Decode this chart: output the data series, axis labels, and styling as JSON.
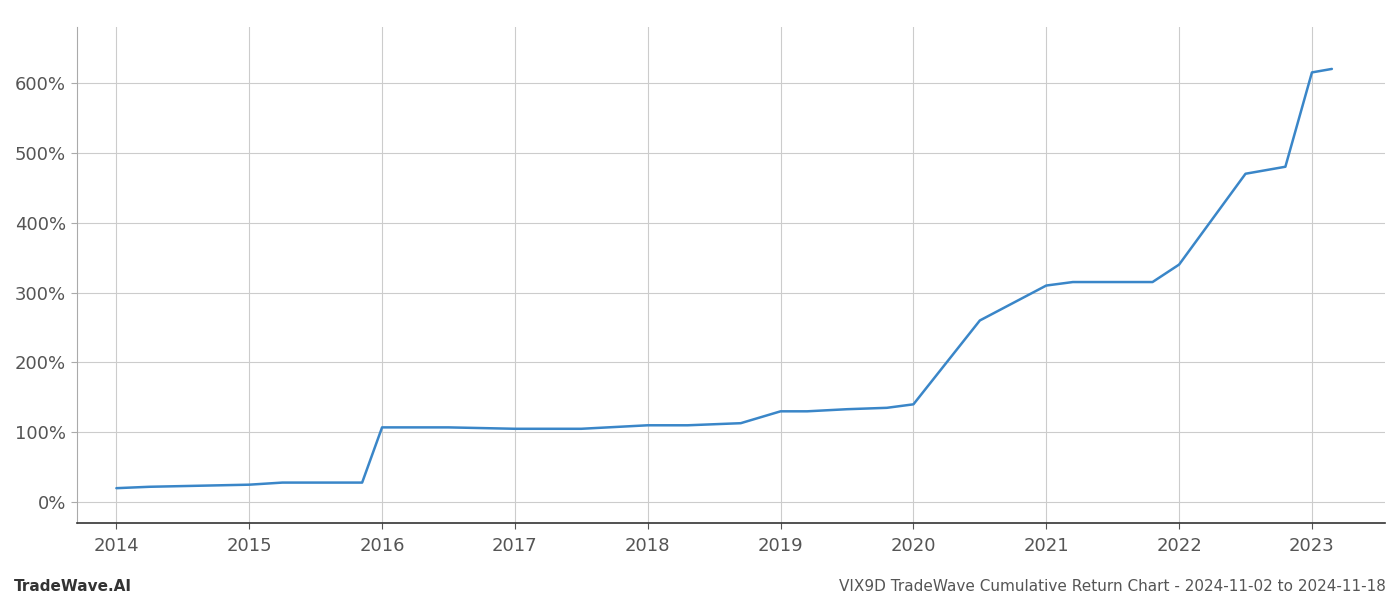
{
  "title": "",
  "footer_left": "TradeWave.AI",
  "footer_right": "VIX9D TradeWave Cumulative Return Chart - 2024-11-02 to 2024-11-18",
  "line_color": "#3a86c8",
  "background_color": "#ffffff",
  "grid_color": "#cccccc",
  "x_values": [
    2014.0,
    2014.25,
    2015.0,
    2015.25,
    2015.85,
    2016.0,
    2016.5,
    2017.0,
    2017.5,
    2018.0,
    2018.3,
    2018.7,
    2019.0,
    2019.2,
    2019.5,
    2019.8,
    2020.0,
    2020.5,
    2021.0,
    2021.2,
    2021.8,
    2022.0,
    2022.5,
    2022.8,
    2023.0,
    2023.15
  ],
  "y_values": [
    20,
    22,
    25,
    28,
    28,
    107,
    107,
    105,
    105,
    110,
    110,
    113,
    130,
    130,
    133,
    135,
    140,
    260,
    310,
    315,
    315,
    340,
    470,
    480,
    615,
    620
  ],
  "xlim": [
    2013.7,
    2023.55
  ],
  "ylim": [
    -30,
    680
  ],
  "yticks": [
    0,
    100,
    200,
    300,
    400,
    500,
    600
  ],
  "xticks": [
    2014,
    2015,
    2016,
    2017,
    2018,
    2019,
    2020,
    2021,
    2022,
    2023
  ],
  "line_width": 1.8,
  "tick_fontsize": 13,
  "footer_fontsize": 11
}
